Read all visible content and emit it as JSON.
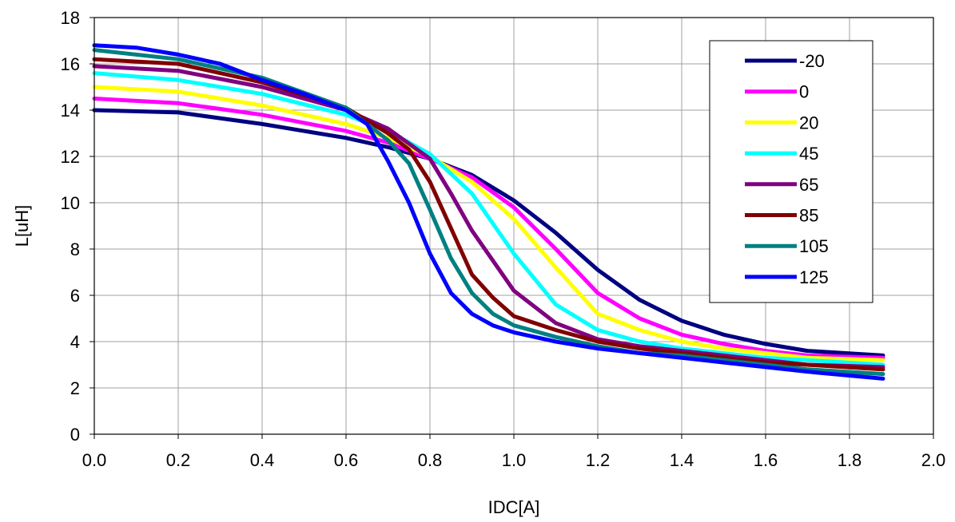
{
  "chart_data": {
    "type": "line",
    "xlabel": "IDC[A]",
    "ylabel": "L[uH]",
    "xlim": [
      0.0,
      2.0
    ],
    "ylim": [
      0,
      18
    ],
    "xticks": [
      "0.0",
      "0.2",
      "0.4",
      "0.6",
      "0.8",
      "1.0",
      "1.2",
      "1.4",
      "1.6",
      "1.8",
      "2.0"
    ],
    "yticks": [
      "0",
      "2",
      "4",
      "6",
      "8",
      "10",
      "12",
      "14",
      "16",
      "18"
    ],
    "grid": true,
    "legend_position": "top-right",
    "series": [
      {
        "name": "-20",
        "color": "#000080",
        "x": [
          0,
          0.2,
          0.4,
          0.6,
          0.7,
          0.8,
          0.9,
          1.0,
          1.1,
          1.2,
          1.3,
          1.4,
          1.5,
          1.6,
          1.7,
          1.88
        ],
        "y": [
          14.0,
          13.9,
          13.4,
          12.8,
          12.4,
          11.9,
          11.2,
          10.1,
          8.7,
          7.1,
          5.8,
          4.9,
          4.3,
          3.9,
          3.6,
          3.4
        ]
      },
      {
        "name": "0",
        "color": "#ff00ff",
        "x": [
          0,
          0.2,
          0.4,
          0.6,
          0.7,
          0.8,
          0.9,
          1.0,
          1.1,
          1.2,
          1.3,
          1.4,
          1.5,
          1.6,
          1.7,
          1.88
        ],
        "y": [
          14.5,
          14.3,
          13.8,
          13.1,
          12.6,
          11.9,
          11.1,
          9.8,
          8.0,
          6.1,
          5.0,
          4.3,
          3.9,
          3.6,
          3.4,
          3.3
        ]
      },
      {
        "name": "20",
        "color": "#ffff00",
        "x": [
          0,
          0.2,
          0.4,
          0.6,
          0.7,
          0.8,
          0.9,
          1.0,
          1.1,
          1.2,
          1.3,
          1.4,
          1.5,
          1.6,
          1.7,
          1.88
        ],
        "y": [
          15.0,
          14.8,
          14.2,
          13.4,
          12.8,
          12.0,
          10.9,
          9.3,
          7.2,
          5.2,
          4.5,
          4.0,
          3.7,
          3.5,
          3.3,
          3.2
        ]
      },
      {
        "name": "45",
        "color": "#00ffff",
        "x": [
          0,
          0.2,
          0.4,
          0.6,
          0.7,
          0.8,
          0.9,
          1.0,
          1.1,
          1.2,
          1.3,
          1.4,
          1.5,
          1.6,
          1.7,
          1.88
        ],
        "y": [
          15.6,
          15.3,
          14.7,
          13.8,
          13.1,
          12.1,
          10.4,
          7.8,
          5.6,
          4.5,
          4.0,
          3.7,
          3.5,
          3.3,
          3.2,
          3.0
        ]
      },
      {
        "name": "65",
        "color": "#800080",
        "x": [
          0,
          0.2,
          0.4,
          0.6,
          0.7,
          0.8,
          0.85,
          0.9,
          1.0,
          1.1,
          1.2,
          1.3,
          1.4,
          1.5,
          1.6,
          1.7,
          1.88
        ],
        "y": [
          15.9,
          15.7,
          15.0,
          14.0,
          13.2,
          11.9,
          10.4,
          8.8,
          6.2,
          4.8,
          4.1,
          3.8,
          3.6,
          3.4,
          3.2,
          3.0,
          2.9
        ]
      },
      {
        "name": "85",
        "color": "#800000",
        "x": [
          0,
          0.2,
          0.4,
          0.6,
          0.7,
          0.75,
          0.8,
          0.85,
          0.9,
          0.95,
          1.0,
          1.1,
          1.2,
          1.3,
          1.4,
          1.5,
          1.6,
          1.7,
          1.88
        ],
        "y": [
          16.2,
          16.0,
          15.2,
          14.1,
          13.0,
          12.3,
          10.9,
          8.9,
          6.9,
          5.9,
          5.1,
          4.5,
          4.0,
          3.7,
          3.5,
          3.3,
          3.1,
          3.0,
          2.8
        ]
      },
      {
        "name": "105",
        "color": "#008080",
        "x": [
          0,
          0.2,
          0.4,
          0.6,
          0.7,
          0.75,
          0.8,
          0.85,
          0.9,
          0.95,
          1.0,
          1.1,
          1.2,
          1.3,
          1.4,
          1.5,
          1.6,
          1.7,
          1.88
        ],
        "y": [
          16.6,
          16.2,
          15.4,
          14.1,
          12.7,
          11.7,
          9.7,
          7.6,
          6.1,
          5.2,
          4.7,
          4.2,
          3.8,
          3.5,
          3.4,
          3.2,
          3.0,
          2.8,
          2.6
        ]
      },
      {
        "name": "125",
        "color": "#0000ff",
        "x": [
          0,
          0.1,
          0.2,
          0.3,
          0.4,
          0.5,
          0.6,
          0.65,
          0.7,
          0.75,
          0.8,
          0.85,
          0.9,
          0.95,
          1.0,
          1.1,
          1.2,
          1.3,
          1.4,
          1.5,
          1.6,
          1.7,
          1.88
        ],
        "y": [
          16.8,
          16.7,
          16.4,
          16.0,
          15.3,
          14.7,
          14.0,
          13.4,
          11.8,
          10.0,
          7.8,
          6.1,
          5.2,
          4.7,
          4.4,
          4.0,
          3.7,
          3.5,
          3.3,
          3.1,
          2.9,
          2.7,
          2.4
        ]
      }
    ]
  }
}
